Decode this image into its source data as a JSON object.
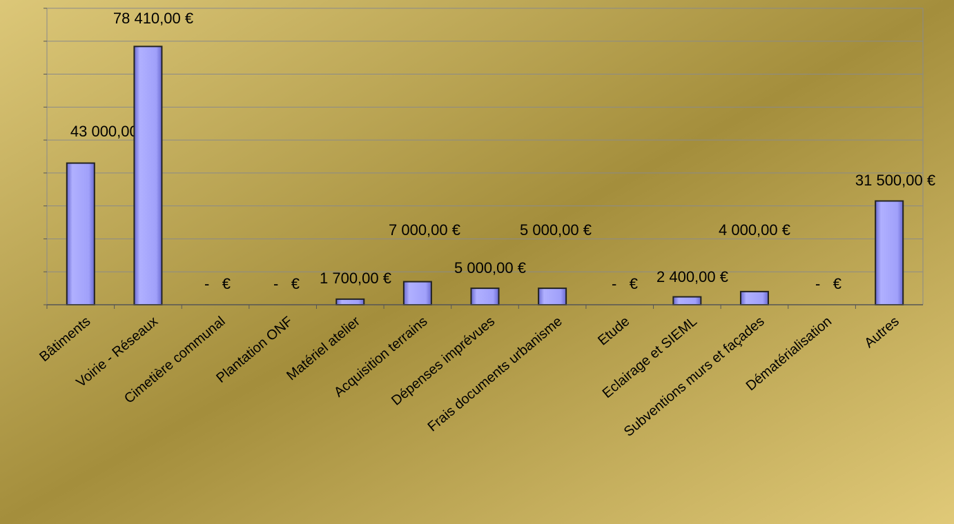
{
  "chart_data": {
    "type": "bar",
    "categories": [
      "Bâtiments",
      "Voirie - Réseaux",
      "Cimetière communal",
      "Plantation ONF",
      "Matériel atelier",
      "Acquisition terrains",
      "Dépenses imprévues",
      "Frais documents urbanisme",
      "Etude",
      "Eclairage et SIEML",
      "Subventions murs et façades",
      "Dématérialisation",
      "Autres"
    ],
    "values": [
      43000,
      78410,
      0,
      0,
      1700,
      7000,
      5000,
      5000,
      0,
      2400,
      4000,
      0,
      31500
    ],
    "value_labels": [
      "43 000,00 €",
      "78 410,00 €",
      "-   €",
      "-   €",
      "1 700,00 €",
      "7 000,00 €",
      "5 000,00 €",
      "5 000,00 €",
      "-   €",
      "2 400,00 €",
      "4 000,00 €",
      "-   €",
      "31 500,00 €"
    ],
    "color": "#9a9af5",
    "ylim": [
      0,
      90000
    ],
    "yticks": [
      0,
      10000,
      20000,
      30000,
      40000,
      50000,
      60000,
      70000,
      80000,
      90000
    ],
    "grid": true
  }
}
